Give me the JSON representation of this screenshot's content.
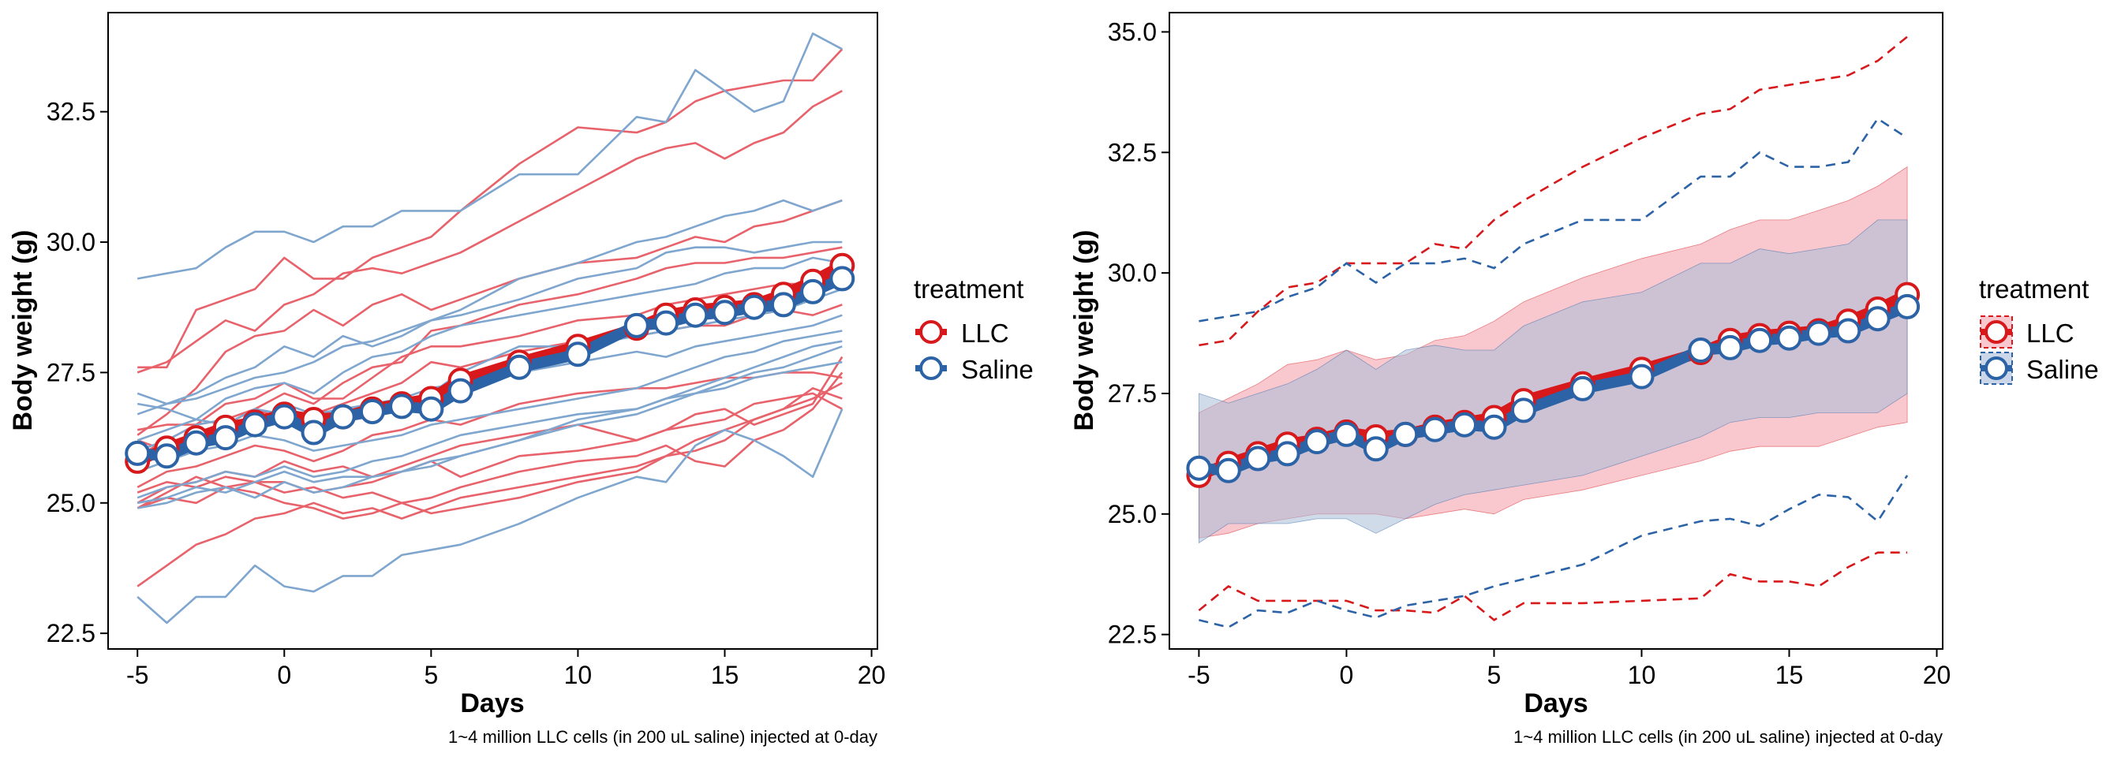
{
  "colors": {
    "llc": "#D7191C",
    "saline": "#2C63A6",
    "llc_individual": "#E8626B",
    "saline_individual": "#7FA6CE",
    "llc_ribbon": "#F4A3AE",
    "saline_ribbon": "#A9BDD8"
  },
  "chart_data": [
    {
      "type": "line",
      "xlabel": "Days",
      "ylabel": "Body weight (g)",
      "caption": "1~4 million LLC cells (in 200 uL saline) injected at 0-day",
      "xlim": [
        -6,
        20.2
      ],
      "ylim": [
        22.2,
        34.4
      ],
      "xticks": [
        -5,
        0,
        5,
        10,
        15,
        20
      ],
      "yticks": [
        22.5,
        25.0,
        27.5,
        30.0,
        32.5
      ],
      "legend": {
        "title": "treatment",
        "position": "right",
        "entries": [
          "LLC",
          "Saline"
        ]
      },
      "x": [
        -5,
        -4,
        -3,
        -2,
        -1,
        0,
        1,
        2,
        3,
        4,
        5,
        6,
        8,
        10,
        12,
        13,
        14,
        15,
        16,
        17,
        18,
        19
      ],
      "series": [
        {
          "name": "LLC",
          "values": [
            25.8,
            26.05,
            26.25,
            26.45,
            26.55,
            26.7,
            26.6,
            26.65,
            26.8,
            26.9,
            27.0,
            27.35,
            27.7,
            28.0,
            28.35,
            28.6,
            28.7,
            28.75,
            28.8,
            29.0,
            29.25,
            29.55
          ]
        },
        {
          "name": "Saline",
          "values": [
            25.95,
            25.9,
            26.15,
            26.25,
            26.5,
            26.65,
            26.35,
            26.65,
            26.75,
            26.85,
            26.8,
            27.15,
            27.6,
            27.85,
            28.4,
            28.45,
            28.6,
            28.65,
            28.75,
            28.8,
            29.05,
            29.3
          ]
        }
      ],
      "individuals": [
        {
          "group": "LLC",
          "values": [
            27.6,
            27.6,
            28.7,
            28.9,
            29.1,
            29.7,
            29.3,
            29.3,
            29.7,
            29.9,
            30.1,
            30.6,
            31.5,
            32.2,
            32.1,
            32.3,
            32.7,
            32.9,
            33.0,
            33.1,
            33.1,
            33.7
          ]
        },
        {
          "group": "LLC",
          "values": [
            27.5,
            27.7,
            28.1,
            28.5,
            28.3,
            28.8,
            29.0,
            29.4,
            29.5,
            29.4,
            29.6,
            29.8,
            30.4,
            31.0,
            31.6,
            31.8,
            31.9,
            31.6,
            31.9,
            32.1,
            32.6,
            32.9
          ]
        },
        {
          "group": "LLC",
          "values": [
            26.3,
            26.7,
            27.2,
            27.9,
            28.2,
            28.3,
            28.7,
            28.4,
            28.8,
            29.0,
            28.7,
            28.9,
            29.3,
            29.6,
            29.7,
            29.9,
            30.1,
            30.0,
            30.3,
            30.4,
            30.6,
            30.8
          ]
        },
        {
          "group": "LLC",
          "values": [
            26.4,
            26.5,
            26.5,
            26.6,
            26.8,
            27.1,
            26.9,
            27.3,
            27.6,
            27.7,
            28.3,
            28.4,
            28.8,
            29.0,
            29.3,
            29.5,
            29.6,
            29.6,
            29.7,
            29.7,
            29.8,
            29.9
          ]
        },
        {
          "group": "LLC",
          "values": [
            25.9,
            26.2,
            26.5,
            26.9,
            27.0,
            27.3,
            27.0,
            27.0,
            27.4,
            27.8,
            28.0,
            28.0,
            28.2,
            28.5,
            28.6,
            28.8,
            28.9,
            29.0,
            29.1,
            29.2,
            29.2,
            29.3
          ]
        },
        {
          "group": "LLC",
          "values": [
            26.2,
            26.0,
            26.3,
            26.5,
            26.8,
            26.6,
            26.7,
            26.9,
            27.1,
            27.3,
            27.7,
            27.6,
            27.9,
            28.1,
            28.2,
            28.3,
            28.4,
            28.4,
            28.6,
            28.7,
            28.6,
            28.8
          ]
        },
        {
          "group": "LLC",
          "values": [
            25.3,
            25.6,
            25.7,
            25.9,
            26.1,
            26.0,
            25.8,
            26.0,
            26.3,
            26.4,
            26.6,
            26.5,
            26.9,
            27.1,
            27.2,
            27.2,
            27.3,
            27.4,
            27.4,
            27.5,
            27.5,
            27.4
          ]
        },
        {
          "group": "LLC",
          "values": [
            25.0,
            25.3,
            25.4,
            25.6,
            25.5,
            25.8,
            25.6,
            25.7,
            25.5,
            25.7,
            25.9,
            26.1,
            26.3,
            26.5,
            26.2,
            26.4,
            26.5,
            26.6,
            26.9,
            27.0,
            27.1,
            26.8
          ]
        },
        {
          "group": "LLC",
          "values": [
            24.9,
            25.2,
            25.5,
            25.3,
            25.4,
            25.2,
            25.3,
            25.1,
            25.2,
            25.0,
            25.1,
            25.3,
            25.6,
            25.8,
            25.9,
            26.1,
            25.8,
            25.7,
            26.2,
            26.4,
            26.8,
            27.5
          ]
        },
        {
          "group": "LLC",
          "values": [
            25.2,
            25.4,
            25.3,
            25.5,
            25.4,
            25.4,
            25.2,
            25.3,
            25.4,
            25.6,
            25.8,
            25.5,
            25.9,
            26.0,
            26.2,
            26.4,
            26.7,
            26.8,
            26.5,
            26.7,
            26.9,
            27.8
          ]
        },
        {
          "group": "LLC",
          "values": [
            23.4,
            23.8,
            24.2,
            24.4,
            24.7,
            24.8,
            25.0,
            24.8,
            24.9,
            24.7,
            24.9,
            25.1,
            25.3,
            25.5,
            25.7,
            25.9,
            26.2,
            26.4,
            26.6,
            26.8,
            27.0,
            27.3
          ]
        },
        {
          "group": "LLC",
          "values": [
            24.9,
            25.1,
            25.0,
            25.3,
            25.2,
            25.0,
            24.9,
            24.7,
            24.8,
            25.0,
            24.8,
            24.9,
            25.1,
            25.4,
            25.6,
            25.9,
            26.0,
            26.2,
            26.6,
            26.8,
            27.2,
            27.0
          ]
        },
        {
          "group": "Saline",
          "values": [
            29.3,
            29.4,
            29.5,
            29.9,
            30.2,
            30.2,
            30.0,
            30.3,
            30.3,
            30.6,
            30.6,
            30.6,
            31.3,
            31.3,
            32.4,
            32.3,
            33.3,
            32.9,
            32.5,
            32.7,
            34.0,
            33.7
          ]
        },
        {
          "group": "Saline",
          "values": [
            27.1,
            26.9,
            27.1,
            27.4,
            27.6,
            28.0,
            27.8,
            28.2,
            28.0,
            28.2,
            28.5,
            28.7,
            29.3,
            29.6,
            30.0,
            30.1,
            30.3,
            30.5,
            30.6,
            30.8,
            30.6,
            30.8
          ]
        },
        {
          "group": "Saline",
          "values": [
            26.7,
            26.9,
            27.0,
            27.2,
            27.4,
            27.5,
            27.7,
            28.0,
            28.1,
            28.3,
            28.5,
            28.6,
            28.9,
            29.3,
            29.5,
            29.8,
            29.9,
            29.9,
            29.8,
            29.9,
            30.0,
            30.0
          ]
        },
        {
          "group": "Saline",
          "values": [
            26.2,
            26.4,
            26.6,
            27.0,
            27.2,
            27.3,
            27.1,
            27.5,
            27.8,
            27.9,
            28.2,
            28.4,
            28.6,
            28.8,
            29.0,
            29.1,
            29.2,
            29.4,
            29.5,
            29.5,
            29.7,
            29.6
          ]
        },
        {
          "group": "Saline",
          "values": [
            26.9,
            26.8,
            26.6,
            26.5,
            26.8,
            26.7,
            26.4,
            26.6,
            26.8,
            26.9,
            27.1,
            27.5,
            28.0,
            28.0,
            28.2,
            28.3,
            28.4,
            28.5,
            28.6,
            28.7,
            28.9,
            29.1
          ]
        },
        {
          "group": "Saline",
          "values": [
            26.0,
            26.2,
            26.5,
            26.6,
            26.5,
            26.9,
            26.7,
            26.8,
            26.9,
            27.0,
            27.2,
            27.3,
            27.5,
            27.7,
            27.9,
            27.8,
            28.0,
            28.1,
            28.2,
            28.3,
            28.4,
            28.6
          ]
        },
        {
          "group": "Saline",
          "values": [
            25.6,
            25.8,
            26.0,
            26.1,
            26.3,
            26.2,
            26.0,
            26.1,
            26.2,
            26.3,
            26.5,
            26.6,
            26.8,
            27.0,
            27.2,
            27.4,
            27.6,
            27.8,
            27.9,
            28.1,
            28.2,
            28.3
          ]
        },
        {
          "group": "Saline",
          "values": [
            25.1,
            25.3,
            25.4,
            25.6,
            25.5,
            25.7,
            25.5,
            25.6,
            25.8,
            25.9,
            26.1,
            26.3,
            26.5,
            26.7,
            26.8,
            27.0,
            27.1,
            27.3,
            27.5,
            27.6,
            27.8,
            28.0
          ]
        },
        {
          "group": "Saline",
          "values": [
            25.0,
            25.1,
            25.3,
            25.2,
            25.4,
            25.6,
            25.4,
            25.5,
            25.5,
            25.6,
            25.7,
            25.9,
            26.2,
            26.6,
            26.8,
            27.0,
            27.2,
            27.4,
            27.6,
            27.8,
            28.0,
            28.1
          ]
        },
        {
          "group": "Saline",
          "values": [
            24.9,
            25.0,
            25.2,
            25.3,
            25.1,
            25.4,
            25.2,
            25.3,
            25.5,
            25.6,
            25.8,
            25.9,
            26.2,
            26.5,
            26.7,
            26.9,
            27.1,
            27.2,
            27.4,
            27.5,
            27.6,
            27.7
          ]
        },
        {
          "group": "Saline",
          "values": [
            23.2,
            22.7,
            23.2,
            23.2,
            23.8,
            23.4,
            23.3,
            23.6,
            23.6,
            24.0,
            24.1,
            24.2,
            24.6,
            25.1,
            25.5,
            25.4,
            26.1,
            26.4,
            26.2,
            25.9,
            25.5,
            26.8
          ]
        }
      ]
    },
    {
      "type": "line",
      "xlabel": "Days",
      "ylabel": "Body weight (g)",
      "caption": "1~4 million LLC cells (in 200 uL saline) injected at 0-day",
      "xlim": [
        -6,
        20.2
      ],
      "ylim": [
        22.2,
        35.4
      ],
      "xticks": [
        -5,
        0,
        5,
        10,
        15,
        20
      ],
      "yticks": [
        22.5,
        25.0,
        27.5,
        30.0,
        32.5,
        35.0
      ],
      "legend": {
        "title": "treatment",
        "position": "right",
        "entries": [
          "LLC",
          "Saline"
        ]
      },
      "x": [
        -5,
        -4,
        -3,
        -2,
        -1,
        0,
        1,
        2,
        3,
        4,
        5,
        6,
        8,
        10,
        12,
        13,
        14,
        15,
        16,
        17,
        18,
        19
      ],
      "series": [
        {
          "name": "LLC",
          "values": [
            25.8,
            26.05,
            26.25,
            26.45,
            26.55,
            26.7,
            26.6,
            26.65,
            26.8,
            26.9,
            27.0,
            27.35,
            27.7,
            28.0,
            28.35,
            28.6,
            28.7,
            28.75,
            28.8,
            29.0,
            29.25,
            29.55
          ],
          "ribbon_lower": [
            24.5,
            24.6,
            24.8,
            24.9,
            25.0,
            25.0,
            25.0,
            24.9,
            25.0,
            25.1,
            25.0,
            25.3,
            25.5,
            25.8,
            26.1,
            26.3,
            26.4,
            26.4,
            26.4,
            26.6,
            26.8,
            26.9
          ],
          "ribbon_upper": [
            27.1,
            27.4,
            27.7,
            28.1,
            28.2,
            28.4,
            28.2,
            28.3,
            28.6,
            28.7,
            29.0,
            29.4,
            29.9,
            30.3,
            30.6,
            30.9,
            31.1,
            31.1,
            31.3,
            31.5,
            31.8,
            32.2
          ],
          "max_values": [
            28.5,
            28.6,
            29.2,
            29.7,
            29.8,
            30.2,
            30.2,
            30.2,
            30.6,
            30.5,
            31.1,
            31.5,
            32.2,
            32.8,
            33.3,
            33.4,
            33.8,
            33.9,
            34.0,
            34.1,
            34.4,
            34.9
          ],
          "min_values": [
            23.0,
            23.5,
            23.2,
            23.2,
            23.2,
            23.2,
            23.0,
            23.0,
            22.95,
            23.3,
            22.8,
            23.15,
            23.15,
            23.2,
            23.25,
            23.75,
            23.6,
            23.6,
            23.5,
            23.9,
            24.2,
            24.2
          ]
        },
        {
          "name": "Saline",
          "values": [
            25.95,
            25.9,
            26.15,
            26.25,
            26.5,
            26.65,
            26.35,
            26.65,
            26.75,
            26.85,
            26.8,
            27.15,
            27.6,
            27.85,
            28.4,
            28.45,
            28.6,
            28.65,
            28.75,
            28.8,
            29.05,
            29.3
          ],
          "ribbon_lower": [
            24.4,
            24.8,
            24.8,
            24.8,
            24.9,
            24.9,
            24.6,
            24.9,
            25.2,
            25.4,
            25.5,
            25.6,
            25.8,
            26.2,
            26.6,
            26.9,
            27.0,
            27.0,
            27.1,
            27.1,
            27.1,
            27.5
          ],
          "ribbon_upper": [
            27.5,
            27.3,
            27.5,
            27.7,
            28.0,
            28.4,
            28.0,
            28.4,
            28.5,
            28.4,
            28.4,
            28.9,
            29.4,
            29.6,
            30.2,
            30.2,
            30.5,
            30.4,
            30.5,
            30.6,
            31.1,
            31.1
          ],
          "max_values": [
            29.0,
            29.1,
            29.2,
            29.5,
            29.7,
            30.2,
            29.8,
            30.2,
            30.2,
            30.3,
            30.1,
            30.6,
            31.1,
            31.1,
            32.0,
            32.0,
            32.5,
            32.2,
            32.2,
            32.3,
            33.2,
            32.8
          ],
          "min_values": [
            22.8,
            22.65,
            23.0,
            22.95,
            23.2,
            23.0,
            22.85,
            23.1,
            23.2,
            23.3,
            23.5,
            23.65,
            23.95,
            24.55,
            24.85,
            24.9,
            24.75,
            25.1,
            25.4,
            25.35,
            24.85,
            25.8
          ]
        }
      ]
    }
  ]
}
